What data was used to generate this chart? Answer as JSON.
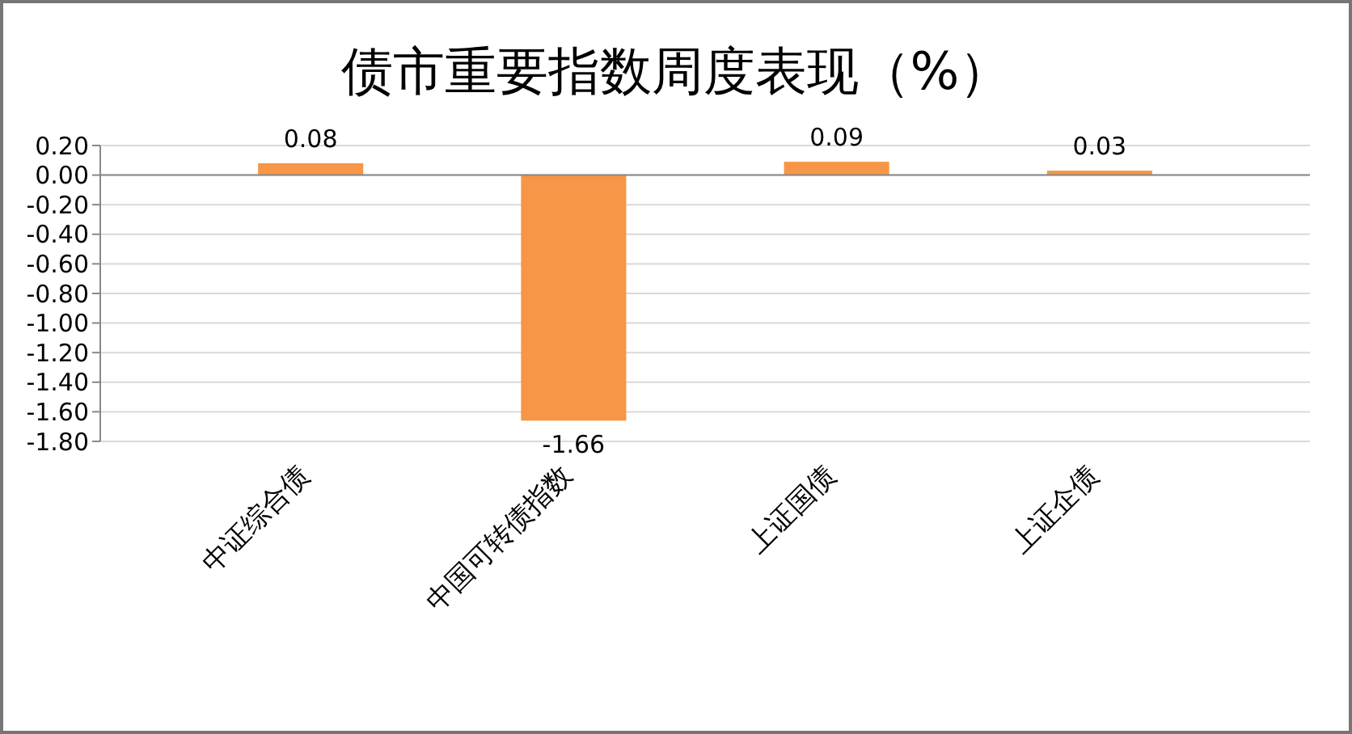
{
  "chart_data": {
    "type": "bar",
    "title": "债市重要指数周度表现（%）",
    "categories": [
      "中证综合债",
      "中国可转债指数",
      "上证国债",
      "上证企债"
    ],
    "values": [
      0.08,
      -1.66,
      0.09,
      0.03
    ],
    "color": "#f79646",
    "ylim": [
      -1.8,
      0.2
    ],
    "yticks": [
      {
        "value": 0.2,
        "label": "0.20"
      },
      {
        "value": 0,
        "label": "0.00"
      },
      {
        "value": -0.2,
        "label": "-0.20"
      },
      {
        "value": -0.4,
        "label": "-0.40"
      },
      {
        "value": -0.6,
        "label": "-0.60"
      },
      {
        "value": -0.8,
        "label": "-0.80"
      },
      {
        "value": -1,
        "label": "-1.00"
      },
      {
        "value": -1.2,
        "label": "-1.20"
      },
      {
        "value": -1.4,
        "label": "-1.40"
      },
      {
        "value": -1.6,
        "label": "-1.60"
      },
      {
        "value": -1.8,
        "label": "-1.80"
      }
    ],
    "grid": "y",
    "data_labels": true
  }
}
